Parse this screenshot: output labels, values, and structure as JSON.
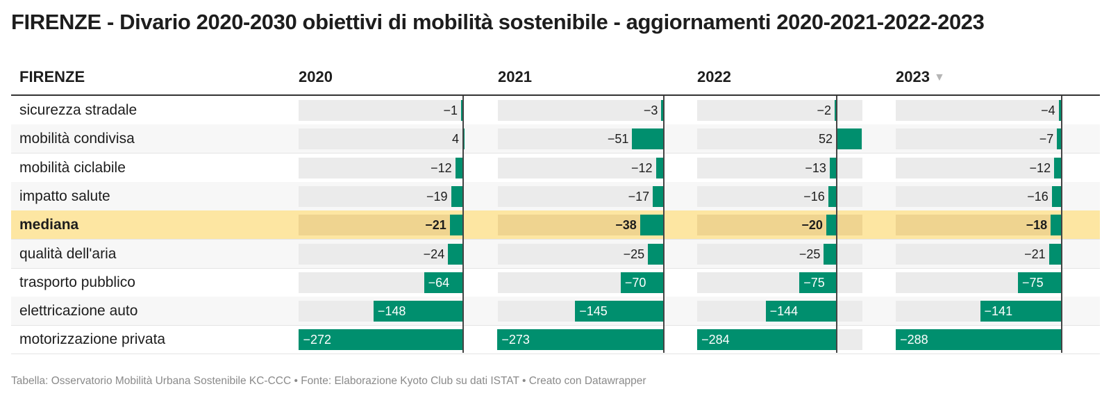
{
  "title": "FIRENZE - Divario 2020-2030 obiettivi di mobilità sostenibile - aggiornamenti 2020-2021-2022-2023",
  "header": {
    "label_col": "FIRENZE",
    "years": [
      "2020",
      "2021",
      "2022",
      "2023"
    ],
    "sorted_column": "2023",
    "sort_icon": "sort-down-icon"
  },
  "colors": {
    "bar": "#008f6e",
    "bar_background": "#ebebeb",
    "highlight_row": "#fde6a2"
  },
  "chart_data": {
    "type": "table",
    "columns": [
      "2020",
      "2021",
      "2022",
      "2023"
    ],
    "rows": [
      {
        "label": "sicurezza stradale",
        "values": [
          -1,
          -3,
          -2,
          -4
        ]
      },
      {
        "label": "mobilità condivisa",
        "values": [
          4,
          -51,
          52,
          -7
        ]
      },
      {
        "label": "mobilità ciclabile",
        "values": [
          -12,
          -12,
          -13,
          -12
        ]
      },
      {
        "label": "impatto salute",
        "values": [
          -19,
          -17,
          -16,
          -16
        ]
      },
      {
        "label": "mediana",
        "values": [
          -21,
          -38,
          -20,
          -18
        ],
        "highlight": true
      },
      {
        "label": "qualità dell'aria",
        "values": [
          -24,
          -25,
          -25,
          -21
        ]
      },
      {
        "label": "trasporto pubblico",
        "values": [
          -64,
          -70,
          -75,
          -75
        ]
      },
      {
        "label": "elettricazione auto",
        "values": [
          -148,
          -145,
          -144,
          -141
        ]
      },
      {
        "label": "motorizzazione privata",
        "values": [
          -272,
          -273,
          -284,
          -288
        ]
      }
    ]
  },
  "footer": "Tabella: Osservatorio Mobilità Urbana Sostenibile KC-CCC • Fonte: Elaborazione Kyoto Club su dati ISTAT • Creato con Datawrapper"
}
